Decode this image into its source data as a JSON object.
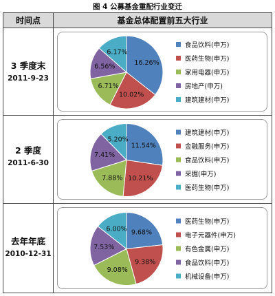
{
  "figure_title": "图 4 公募基金重配行业变迁",
  "header": {
    "col_left": "时间点",
    "col_right": "基金总体配置前五大行业"
  },
  "colors": [
    "#4f81bd",
    "#c0504d",
    "#9bbb59",
    "#8064a2",
    "#4bacc6"
  ],
  "chart_data": [
    {
      "type": "pie",
      "row_label": "3 季度末",
      "date": "2011-9-23",
      "categories": [
        "食品饮料(申万)",
        "医药生物(申万)",
        "家用电器(申万)",
        "房地产(申万)",
        "建筑建材(申万)"
      ],
      "values": [
        16.26,
        10.02,
        6.71,
        6.56,
        6.17
      ],
      "value_labels": [
        "16.26%",
        "10.02%",
        "6.71%",
        "6.56%",
        "6.17%"
      ],
      "legend_position": "right"
    },
    {
      "type": "pie",
      "row_label": "2 季度",
      "date": "2011-6-30",
      "categories": [
        "建筑建材(申万)",
        "金融服务(申万)",
        "食品饮料(申万)",
        "采掘(申万)",
        "医药生物(申万)"
      ],
      "values": [
        11.54,
        10.21,
        7.88,
        7.41,
        5.2
      ],
      "value_labels": [
        "11.54%",
        "10.21%",
        "7.88%",
        "7.41%",
        "5.20%"
      ],
      "legend_position": "right"
    },
    {
      "type": "pie",
      "row_label": "去年年底",
      "date": "2010-12-31",
      "categories": [
        "医药生物(申万)",
        "电子元器件(申万)",
        "有色金属(申万)",
        "食品饮料(申万)",
        "机械设备(申万)"
      ],
      "values": [
        9.68,
        9.38,
        9.08,
        7.53,
        6.0
      ],
      "value_labels": [
        "9.68%",
        "9.38%",
        "9.08%",
        "7.53%",
        "6.00%"
      ],
      "legend_position": "right"
    }
  ]
}
